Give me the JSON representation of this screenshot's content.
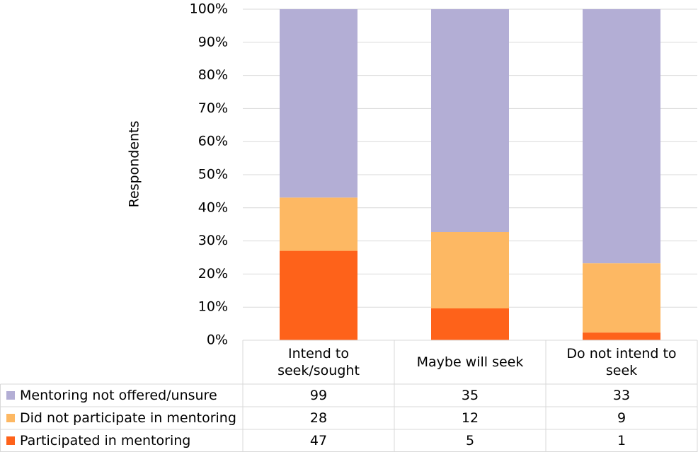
{
  "chart_data": {
    "type": "bar",
    "stacked": "percent",
    "y_label": "Respondents",
    "categories": [
      "Intend to seek/sought",
      "Maybe will seek",
      "Do not intend to seek"
    ],
    "series": [
      {
        "name": "Mentoring not offered/unsure",
        "color": "#b3aed5",
        "values": [
          99,
          35,
          33
        ]
      },
      {
        "name": "Did not participate in mentoring",
        "color": "#fdb863",
        "values": [
          28,
          12,
          9
        ]
      },
      {
        "name": "Participated in mentoring",
        "color": "#fe621a",
        "values": [
          47,
          5,
          1
        ]
      }
    ],
    "ylim": [
      0,
      100
    ],
    "yticks": [
      {
        "value": 0,
        "label": "0%"
      },
      {
        "value": 10,
        "label": "10%"
      },
      {
        "value": 20,
        "label": "20%"
      },
      {
        "value": 30,
        "label": "30%"
      },
      {
        "value": 40,
        "label": "40%"
      },
      {
        "value": 50,
        "label": "50%"
      },
      {
        "value": 60,
        "label": "60%"
      },
      {
        "value": 70,
        "label": "70%"
      },
      {
        "value": 80,
        "label": "80%"
      },
      {
        "value": 90,
        "label": "90%"
      },
      {
        "value": 100,
        "label": "100%"
      }
    ],
    "grid": true
  }
}
